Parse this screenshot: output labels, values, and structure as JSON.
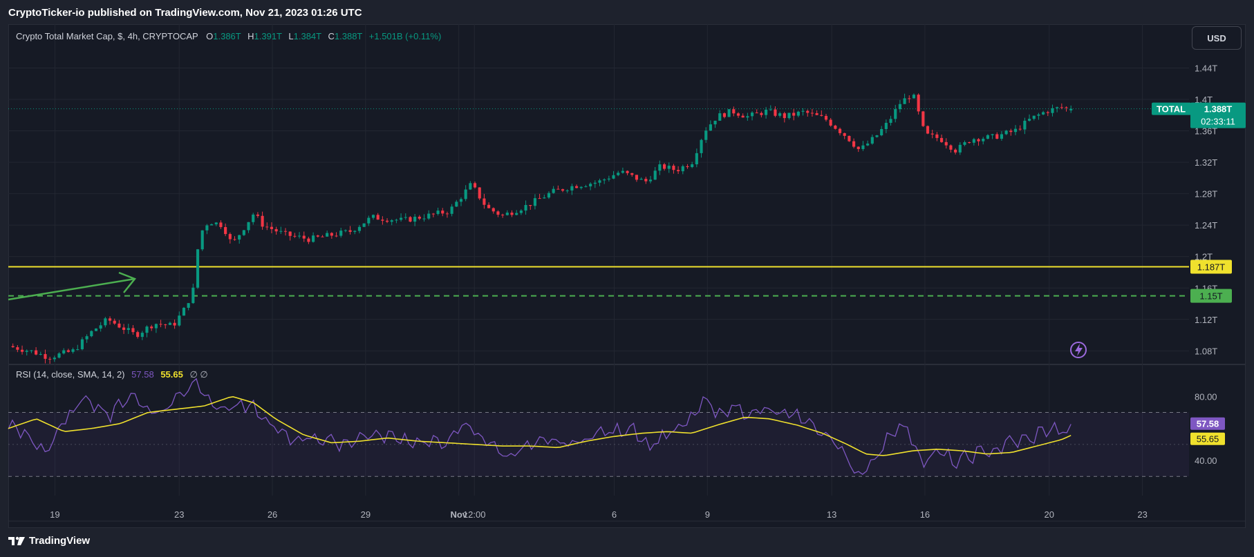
{
  "header": {
    "published": "CryptoTicker-io published on TradingView.com, Nov 21, 2023 01:26 UTC"
  },
  "legend": {
    "symbol": "Crypto Total Market Cap, $, 4h, CRYPTOCAP",
    "o_label": "O",
    "o_value": "1.386T",
    "h_label": "H",
    "h_value": "1.391T",
    "l_label": "L",
    "l_value": "1.384T",
    "c_label": "C",
    "c_value": "1.388T",
    "change": "+1.501B (+0.11%)"
  },
  "rsi_legend": {
    "label": "RSI (14, close, SMA, 14, 2)",
    "rsi_value": "57.58",
    "sma_value": "55.65",
    "extra": "∅ ∅"
  },
  "currency": "USD",
  "footer": {
    "brand": "TradingView"
  },
  "colors": {
    "up": "#089981",
    "down": "#f23645",
    "rsi": "#7e57c2",
    "rsi_sma": "#f0e12d",
    "level_yellow": "#f0e12d",
    "level_green": "#4caf50",
    "arrow": "#4caf50",
    "current_tag": "#089981"
  },
  "icons": {
    "lightning": "lightning-icon",
    "logo": "tradingview-logo-icon"
  },
  "chart_data": [
    {
      "type": "candlestick",
      "title": "Crypto Total Market Cap, $, 4h, CRYPTOCAP",
      "ylabel": "USD",
      "y_ticks": [
        "1.08T",
        "1.12T",
        "1.16T",
        "1.2T",
        "1.24T",
        "1.28T",
        "1.32T",
        "1.36T",
        "1.4T",
        "1.44T"
      ],
      "y_tick_values": [
        1.08,
        1.12,
        1.16,
        1.2,
        1.24,
        1.28,
        1.32,
        1.36,
        1.4,
        1.44
      ],
      "ylim": [
        1.068,
        1.465
      ],
      "x_ticks": [
        "19",
        "23",
        "26",
        "29",
        "Nov",
        "12:00",
        "6",
        "9",
        "13",
        "16",
        "20",
        "23"
      ],
      "x_tick_days": [
        -13,
        -9,
        -6,
        -3,
        0,
        0.5,
        5,
        8,
        12,
        15,
        19,
        22
      ],
      "x_range_days": [
        -14.5,
        23.5
      ],
      "x_unit": "days relative to Nov 1, 2023",
      "series_anchor_close": [
        [
          -14.5,
          1.086
        ],
        [
          -13.8,
          1.08
        ],
        [
          -13.2,
          1.072
        ],
        [
          -12.4,
          1.08
        ],
        [
          -11.8,
          1.105
        ],
        [
          -11.3,
          1.12
        ],
        [
          -10.4,
          1.1
        ],
        [
          -9.8,
          1.115
        ],
        [
          -9.2,
          1.112
        ],
        [
          -8.8,
          1.135
        ],
        [
          -8.55,
          1.158
        ],
        [
          -8.35,
          1.228
        ],
        [
          -8.05,
          1.245
        ],
        [
          -7.6,
          1.24
        ],
        [
          -7.3,
          1.215
        ],
        [
          -6.6,
          1.255
        ],
        [
          -6.3,
          1.24
        ],
        [
          -5.6,
          1.228
        ],
        [
          -4.8,
          1.222
        ],
        [
          -3.5,
          1.232
        ],
        [
          -2.8,
          1.25
        ],
        [
          -1.8,
          1.246
        ],
        [
          -1.0,
          1.252
        ],
        [
          -0.3,
          1.258
        ],
        [
          0.4,
          1.292
        ],
        [
          0.9,
          1.262
        ],
        [
          1.4,
          1.252
        ],
        [
          2.2,
          1.265
        ],
        [
          3.0,
          1.282
        ],
        [
          3.7,
          1.29
        ],
        [
          4.5,
          1.295
        ],
        [
          5.2,
          1.308
        ],
        [
          6.0,
          1.295
        ],
        [
          6.5,
          1.315
        ],
        [
          7.0,
          1.31
        ],
        [
          7.5,
          1.32
        ],
        [
          7.9,
          1.36
        ],
        [
          8.3,
          1.378
        ],
        [
          8.8,
          1.385
        ],
        [
          9.3,
          1.378
        ],
        [
          9.9,
          1.385
        ],
        [
          10.5,
          1.378
        ],
        [
          11.1,
          1.384
        ],
        [
          11.8,
          1.375
        ],
        [
          12.5,
          1.352
        ],
        [
          12.9,
          1.335
        ],
        [
          13.4,
          1.352
        ],
        [
          13.8,
          1.37
        ],
        [
          14.2,
          1.395
        ],
        [
          14.6,
          1.408
        ],
        [
          15.0,
          1.355
        ],
        [
          15.5,
          1.35
        ],
        [
          16.0,
          1.335
        ],
        [
          16.5,
          1.35
        ],
        [
          17.2,
          1.352
        ],
        [
          17.9,
          1.36
        ],
        [
          18.4,
          1.375
        ],
        [
          18.9,
          1.385
        ],
        [
          19.4,
          1.39
        ],
        [
          19.7,
          1.388
        ]
      ],
      "levels": [
        {
          "value": 1.187,
          "label": "1.187T",
          "style": "solid",
          "color": "#f0e12d"
        },
        {
          "value": 1.15,
          "label": "1.15T",
          "style": "dashed",
          "color": "#4caf50"
        }
      ],
      "current": {
        "label": "TOTAL",
        "value": 1.388,
        "value_label": "1.388T",
        "countdown": "02:33:11"
      },
      "grid": true
    },
    {
      "type": "line",
      "title": "RSI (14, close, SMA, 14, 2)",
      "y_ticks": [
        "80.00",
        "40.00"
      ],
      "y_tick_values": [
        80,
        40
      ],
      "ylim": [
        18,
        100
      ],
      "band_levels": [
        70,
        30
      ],
      "series": [
        {
          "name": "RSI",
          "color": "#7e57c2",
          "anchors": [
            [
              -14.5,
              62
            ],
            [
              -13.9,
              55
            ],
            [
              -13.3,
              46
            ],
            [
              -12.6,
              66
            ],
            [
              -12.0,
              80
            ],
            [
              -11.2,
              68
            ],
            [
              -10.6,
              82
            ],
            [
              -10.0,
              72
            ],
            [
              -9.5,
              70
            ],
            [
              -9.1,
              80
            ],
            [
              -8.7,
              86
            ],
            [
              -8.4,
              90
            ],
            [
              -7.8,
              72
            ],
            [
              -7.2,
              74
            ],
            [
              -6.6,
              72
            ],
            [
              -6.1,
              63
            ],
            [
              -5.5,
              53
            ],
            [
              -4.7,
              55
            ],
            [
              -3.8,
              50
            ],
            [
              -3.0,
              56
            ],
            [
              -2.2,
              55
            ],
            [
              -1.4,
              52
            ],
            [
              -0.6,
              50
            ],
            [
              0.3,
              62
            ],
            [
              0.9,
              52
            ],
            [
              1.5,
              43
            ],
            [
              2.2,
              48
            ],
            [
              3.0,
              52
            ],
            [
              3.7,
              50
            ],
            [
              4.4,
              57
            ],
            [
              5.1,
              58
            ],
            [
              5.6,
              62
            ],
            [
              6.1,
              48
            ],
            [
              6.6,
              56
            ],
            [
              7.0,
              58
            ],
            [
              7.5,
              66
            ],
            [
              7.9,
              78
            ],
            [
              8.3,
              68
            ],
            [
              8.8,
              74
            ],
            [
              9.3,
              70
            ],
            [
              9.9,
              71
            ],
            [
              10.6,
              68
            ],
            [
              11.3,
              64
            ],
            [
              12.0,
              52
            ],
            [
              12.5,
              44
            ],
            [
              12.9,
              28
            ],
            [
              13.3,
              38
            ],
            [
              13.7,
              52
            ],
            [
              14.1,
              62
            ],
            [
              14.5,
              58
            ],
            [
              14.9,
              40
            ],
            [
              15.5,
              45
            ],
            [
              16.0,
              38
            ],
            [
              16.6,
              44
            ],
            [
              17.2,
              46
            ],
            [
              17.8,
              52
            ],
            [
              18.4,
              53
            ],
            [
              18.9,
              60
            ],
            [
              19.4,
              58
            ],
            [
              19.7,
              57.58
            ]
          ]
        },
        {
          "name": "SMA",
          "color": "#f0e12d",
          "anchors": [
            [
              -14.5,
              60
            ],
            [
              -13.6,
              66
            ],
            [
              -12.7,
              58
            ],
            [
              -11.8,
              60
            ],
            [
              -10.9,
              63
            ],
            [
              -10.0,
              70
            ],
            [
              -9.1,
              72
            ],
            [
              -8.2,
              74
            ],
            [
              -7.3,
              80
            ],
            [
              -6.6,
              76
            ],
            [
              -5.9,
              66
            ],
            [
              -5.0,
              56
            ],
            [
              -4.1,
              51
            ],
            [
              -3.2,
              52
            ],
            [
              -2.3,
              54
            ],
            [
              -1.3,
              52
            ],
            [
              -0.4,
              51
            ],
            [
              0.5,
              50
            ],
            [
              1.4,
              49
            ],
            [
              2.3,
              49
            ],
            [
              3.2,
              48
            ],
            [
              4.1,
              52
            ],
            [
              5.0,
              55
            ],
            [
              5.9,
              57
            ],
            [
              6.7,
              58
            ],
            [
              7.5,
              57
            ],
            [
              8.3,
              62
            ],
            [
              9.2,
              67
            ],
            [
              10.0,
              66
            ],
            [
              10.9,
              62
            ],
            [
              11.7,
              57
            ],
            [
              12.5,
              50
            ],
            [
              13.1,
              44
            ],
            [
              13.7,
              43
            ],
            [
              14.6,
              46
            ],
            [
              15.4,
              47
            ],
            [
              16.2,
              46
            ],
            [
              17.0,
              44
            ],
            [
              17.8,
              45
            ],
            [
              18.6,
              49
            ],
            [
              19.4,
              53
            ],
            [
              19.7,
              55.65
            ]
          ]
        }
      ],
      "rsi_value_label": "57.58",
      "sma_value_label": "55.65"
    }
  ]
}
